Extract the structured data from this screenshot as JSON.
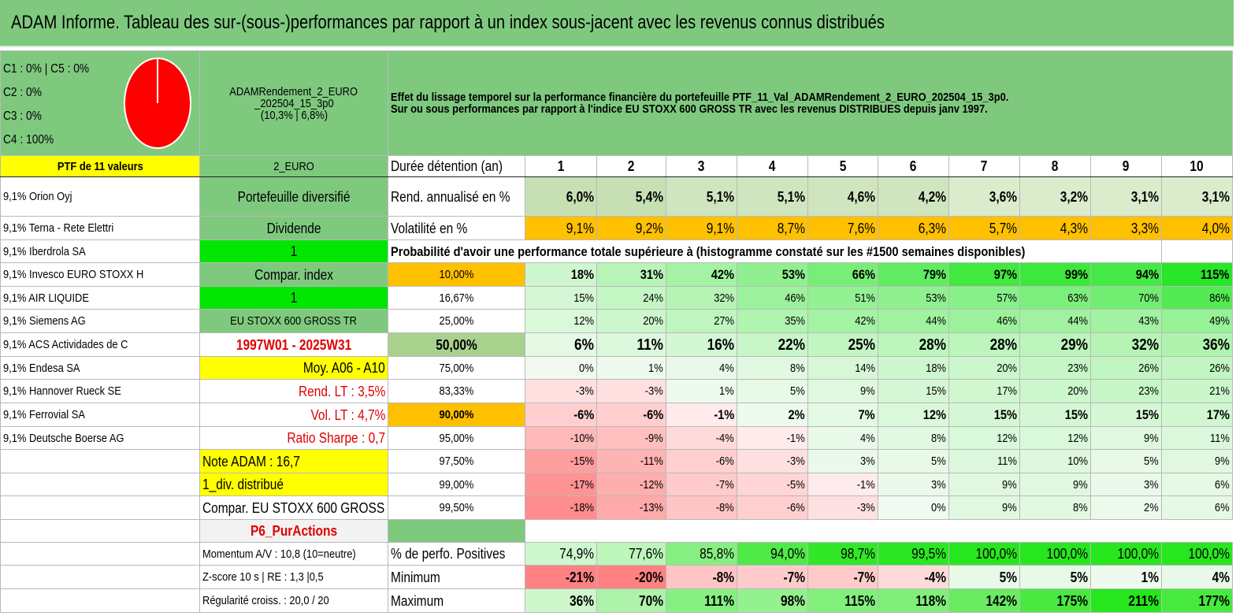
{
  "title": "ADAM Informe. Tableau des sur-(sous-)performances par rapport à un index sous-jacent avec les revenus connus distribués",
  "allocation": {
    "lines": [
      "C1 : 0% | C5 : 0%",
      "C2 : 0%",
      "C3 : 0%",
      "C4 : 100%"
    ],
    "slices": [
      {
        "label": "C4",
        "value": 100,
        "color": "#ff0000"
      }
    ]
  },
  "portfolio": {
    "name_line1": "ADAMRendement_2_EURO",
    "name_line2": "_202504_15_3p0",
    "name_line3": "(10,3% | 6,8%)",
    "code": "2_EURO",
    "header": "PTF de 11 valeurs"
  },
  "description": {
    "line1": "Effet du lissage temporel sur la performance financière du portefeuille PTF_11_Val_ADAMRendement_2_EURO_202504_15_3p0.",
    "line2": "Sur ou sous performances par rapport à l'indice EU STOXX 600 GROSS TR avec les revenus DISTRIBUES depuis janv 1997."
  },
  "holdings": [
    "9,1% Orion Oyj",
    "9,1% Terna - Rete Elettri",
    "9,1% Iberdrola SA",
    "9,1% Invesco EURO STOXX H",
    "9,1% AIR LIQUIDE",
    "9,1% Siemens AG",
    "9,1% ACS Actividades de C",
    "9,1% Endesa SA",
    "9,1% Hannover Rueck SE",
    "9,1% Ferrovial SA",
    "9,1% Deutsche Boerse AG"
  ],
  "side": {
    "diversified": "Portefeuille diversifié",
    "dividend": "Dividende",
    "dividend_value": "1",
    "compar_index": "Compar. index",
    "compar_index_value": "1",
    "index_name": "EU STOXX 600 GROSS TR",
    "period": "1997W01 - 2025W31",
    "moy": "Moy. A06 - A10",
    "rend_lt": "Rend. LT : 3,5%",
    "vol_lt": "Vol. LT : 4,7%",
    "sharpe": "Ratio Sharpe : 0,7",
    "note": "Note ADAM : 16,7",
    "div": "1_div. distribué",
    "compar": "Compar. EU STOXX 600 GROSS TR",
    "category": "P6_PurActions",
    "momentum": "Momentum A/V : 10,8 (10=neutre)",
    "zscore": "Z-score 10 s | RE : 1,3 |0,5",
    "regularity": "Régularité croiss. : 20,0 / 20"
  },
  "table": {
    "duration_label": "Durée détention (an)",
    "years": [
      "1",
      "2",
      "3",
      "4",
      "5",
      "6",
      "7",
      "8",
      "9",
      "10"
    ],
    "rend_label": "Rend. annualisé en %",
    "rend": [
      "6,0%",
      "5,4%",
      "5,1%",
      "5,1%",
      "4,6%",
      "4,2%",
      "3,6%",
      "3,2%",
      "3,1%",
      "3,1%"
    ],
    "vol_label": "Volatilité en %",
    "vol": [
      "9,1%",
      "9,2%",
      "9,1%",
      "8,7%",
      "7,6%",
      "6,3%",
      "5,7%",
      "4,3%",
      "3,3%",
      "4,0%"
    ],
    "prob_label": "Probabilité d'avoir une performance totale supérieure à (histogramme constaté sur les #1500 semaines disponibles)",
    "quantiles": [
      {
        "q": "10,00%",
        "v": [
          "18%",
          "31%",
          "42%",
          "53%",
          "66%",
          "79%",
          "97%",
          "99%",
          "94%",
          "115%"
        ]
      },
      {
        "q": "16,67%",
        "v": [
          "15%",
          "24%",
          "32%",
          "46%",
          "51%",
          "53%",
          "57%",
          "63%",
          "70%",
          "86%"
        ]
      },
      {
        "q": "25,00%",
        "v": [
          "12%",
          "20%",
          "27%",
          "35%",
          "42%",
          "44%",
          "46%",
          "44%",
          "43%",
          "49%"
        ]
      },
      {
        "q": "50,00%",
        "v": [
          "6%",
          "11%",
          "16%",
          "22%",
          "25%",
          "28%",
          "28%",
          "29%",
          "32%",
          "36%"
        ]
      },
      {
        "q": "75,00%",
        "v": [
          "0%",
          "1%",
          "4%",
          "8%",
          "14%",
          "18%",
          "20%",
          "23%",
          "26%",
          "26%"
        ]
      },
      {
        "q": "83,33%",
        "v": [
          "-3%",
          "-3%",
          "1%",
          "5%",
          "9%",
          "15%",
          "17%",
          "20%",
          "23%",
          "21%"
        ]
      },
      {
        "q": "90,00%",
        "v": [
          "-6%",
          "-6%",
          "-1%",
          "2%",
          "7%",
          "12%",
          "15%",
          "15%",
          "15%",
          "17%"
        ]
      },
      {
        "q": "95,00%",
        "v": [
          "-10%",
          "-9%",
          "-4%",
          "-1%",
          "4%",
          "8%",
          "12%",
          "12%",
          "9%",
          "11%"
        ]
      },
      {
        "q": "97,50%",
        "v": [
          "-15%",
          "-11%",
          "-6%",
          "-3%",
          "3%",
          "5%",
          "11%",
          "10%",
          "5%",
          "9%"
        ]
      },
      {
        "q": "99,00%",
        "v": [
          "-17%",
          "-12%",
          "-7%",
          "-5%",
          "-1%",
          "3%",
          "9%",
          "9%",
          "3%",
          "6%"
        ]
      },
      {
        "q": "99,50%",
        "v": [
          "-18%",
          "-13%",
          "-8%",
          "-6%",
          "-3%",
          "0%",
          "9%",
          "8%",
          "2%",
          "6%"
        ]
      }
    ],
    "pos_label": "% de perfo. Positives",
    "pos": [
      "74,9%",
      "77,6%",
      "85,8%",
      "94,0%",
      "98,7%",
      "99,5%",
      "100,0%",
      "100,0%",
      "100,0%",
      "100,0%"
    ],
    "min_label": "Minimum",
    "min": [
      "-21%",
      "-20%",
      "-8%",
      "-7%",
      "-7%",
      "-4%",
      "5%",
      "5%",
      "1%",
      "4%"
    ],
    "max_label": "Maximum",
    "max": [
      "36%",
      "70%",
      "111%",
      "98%",
      "115%",
      "118%",
      "142%",
      "175%",
      "211%",
      "177%"
    ]
  }
}
